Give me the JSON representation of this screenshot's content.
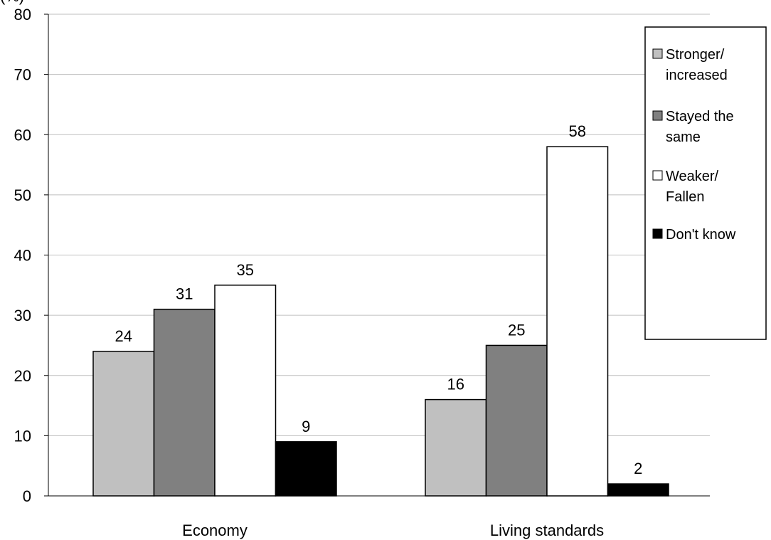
{
  "chart_data": {
    "type": "bar",
    "title": "",
    "xlabel": "",
    "ylabel": "(%)",
    "ylim": [
      0,
      80
    ],
    "yticks": [
      0,
      10,
      20,
      30,
      40,
      50,
      60,
      70,
      80
    ],
    "grid": true,
    "legend_position": "right",
    "categories": [
      "Economy",
      "Living standards"
    ],
    "series": [
      {
        "name": "Stronger/ increased",
        "legend_lines": [
          "Stronger/",
          "increased"
        ],
        "color": "#c0c0c0",
        "values": [
          24,
          16
        ]
      },
      {
        "name": "Stayed the same",
        "legend_lines": [
          "Stayed the",
          "same"
        ],
        "color": "#808080",
        "values": [
          31,
          25
        ]
      },
      {
        "name": "Weaker/ Fallen",
        "legend_lines": [
          "Weaker/",
          "Fallen"
        ],
        "color": "#ffffff",
        "values": [
          35,
          58
        ]
      },
      {
        "name": "Don't know",
        "legend_lines": [
          "Don't know"
        ],
        "color": "#000000",
        "values": [
          9,
          2
        ]
      }
    ]
  }
}
